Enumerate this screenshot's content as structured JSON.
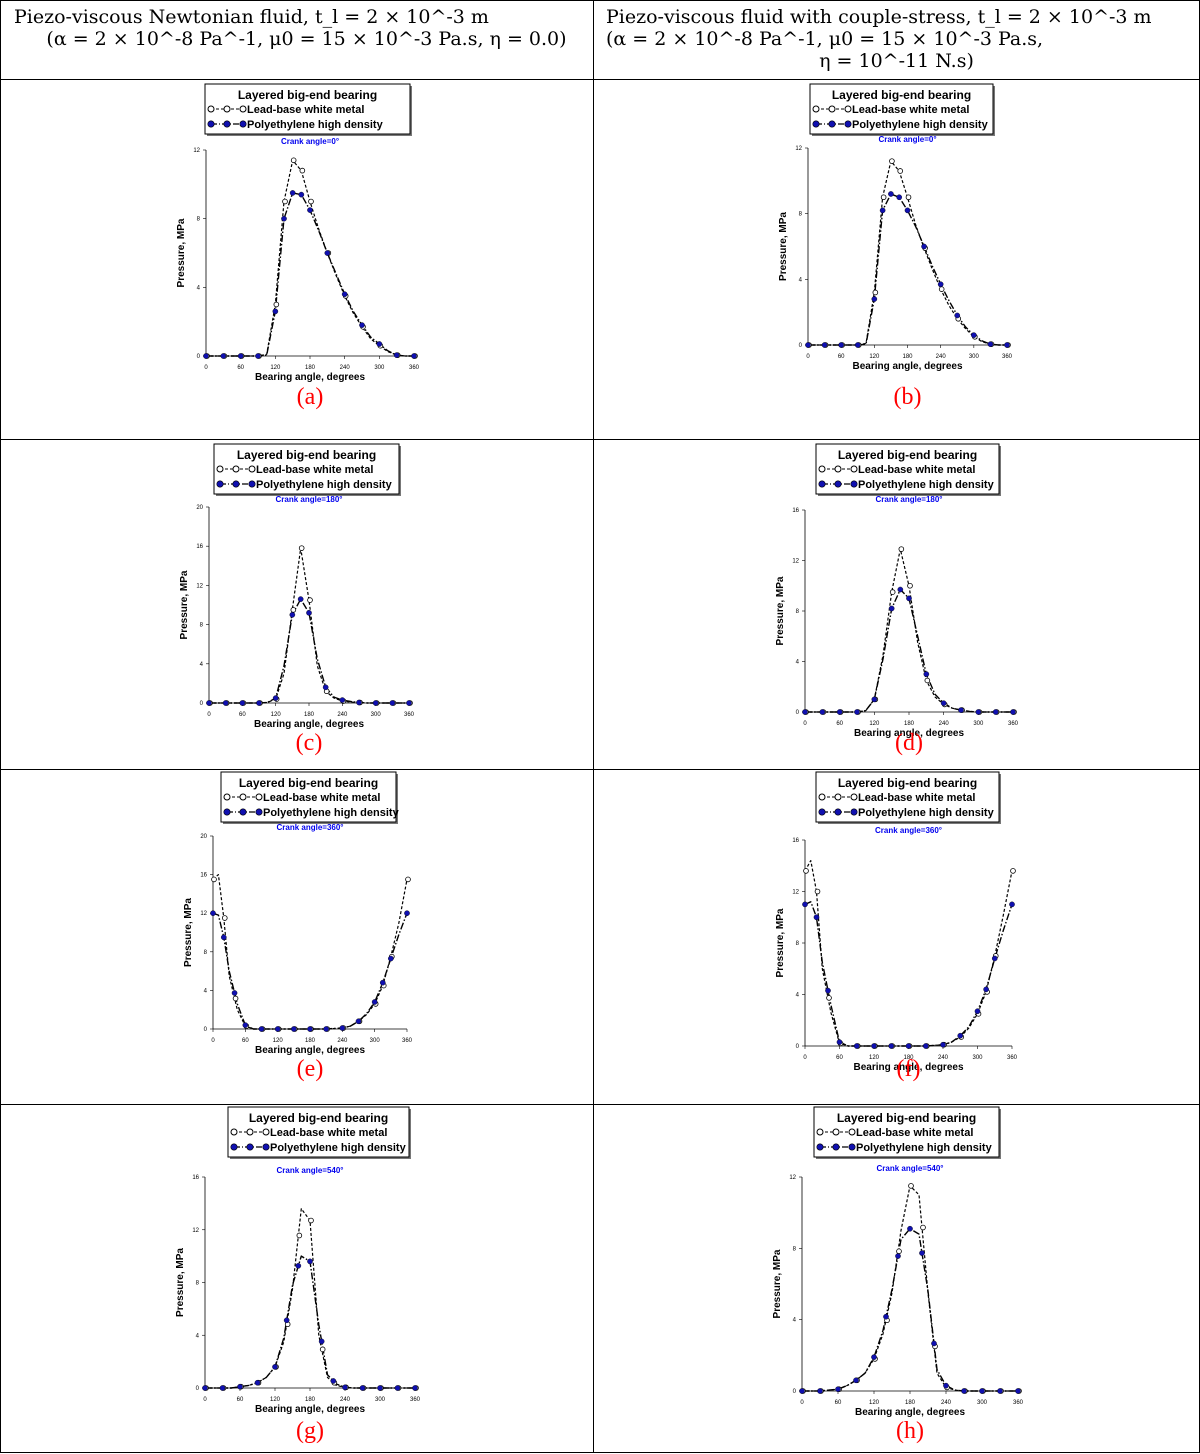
{
  "headers": {
    "left": {
      "line1": "Piezo-viscous Newtonian fluid,  t_l = 2 × 10^-3 m",
      "line2": "(α = 2 × 10^-8 Pa^-1, μ0 = 15 × 10^-3 Pa.s, η = 0.0)"
    },
    "right": {
      "line1": "Piezo-viscous fluid with couple-stress,  t_l = 2 × 10^-3 m",
      "line2": "(α = 2 × 10^-8 Pa^-1, μ0 = 15 × 10^-3 Pa.s,",
      "line3": "η = 10^-11 N.s)"
    }
  },
  "colors": {
    "lead": "#000000",
    "poly": "#1010b0",
    "crank_label": "#0000ee",
    "panel_letter": "#ff0000"
  },
  "legend": {
    "title": "Layered big-end bearing",
    "lead_label": "Lead-base white metal",
    "poly_label": "Polyethylene high density"
  },
  "chart_data": [
    {
      "panel": "(a)",
      "type": "line",
      "crank_label": "Crank angle=0°",
      "xlabel": "Bearing angle, degrees",
      "ylabel": "Pressure, MPa",
      "xlim": [
        0,
        360
      ],
      "ylim": [
        0,
        12
      ],
      "xticks": [
        0,
        60,
        120,
        180,
        240,
        300,
        360
      ],
      "yticks": [
        0,
        4,
        8,
        12
      ],
      "x": [
        0,
        15,
        30,
        45,
        60,
        75,
        90,
        105,
        120,
        135,
        150,
        165,
        180,
        195,
        210,
        225,
        240,
        255,
        270,
        285,
        300,
        315,
        330,
        345,
        360
      ],
      "series": [
        {
          "name": "Lead-base white metal",
          "values": [
            0,
            0,
            0,
            0,
            0,
            0,
            0,
            0.1,
            3.0,
            9.0,
            11.4,
            10.8,
            9.0,
            7.4,
            6.0,
            4.7,
            3.5,
            2.5,
            1.7,
            1.0,
            0.6,
            0.25,
            0.05,
            0,
            0
          ]
        },
        {
          "name": "Polyethylene high density",
          "values": [
            0,
            0,
            0,
            0,
            0,
            0,
            0,
            0.05,
            2.6,
            8.0,
            9.5,
            9.4,
            8.5,
            7.3,
            6.0,
            4.8,
            3.6,
            2.6,
            1.8,
            1.1,
            0.7,
            0.3,
            0.05,
            0,
            0
          ]
        }
      ],
      "markers_x": [
        0,
        30,
        60,
        90,
        120,
        135,
        150,
        165,
        180,
        210,
        240,
        270,
        300,
        330,
        360
      ]
    },
    {
      "panel": "(b)",
      "type": "line",
      "crank_label": "Crank angle=0°",
      "xlabel": "Bearing angle, degrees",
      "ylabel": "Pressure, MPa",
      "xlim": [
        0,
        360
      ],
      "ylim": [
        0,
        12
      ],
      "xticks": [
        0,
        60,
        120,
        180,
        240,
        300,
        360
      ],
      "yticks": [
        0,
        4,
        8,
        12
      ],
      "x": [
        0,
        15,
        30,
        45,
        60,
        75,
        90,
        105,
        120,
        135,
        150,
        165,
        180,
        195,
        210,
        225,
        240,
        255,
        270,
        285,
        300,
        315,
        330,
        345,
        360
      ],
      "series": [
        {
          "name": "Lead-base white metal",
          "values": [
            0,
            0,
            0,
            0,
            0,
            0,
            0,
            0.1,
            3.2,
            9.0,
            11.2,
            10.6,
            9.0,
            7.3,
            5.9,
            4.6,
            3.4,
            2.4,
            1.6,
            1.0,
            0.5,
            0.2,
            0.05,
            0,
            0
          ]
        },
        {
          "name": "Polyethylene high density",
          "values": [
            0,
            0,
            0,
            0,
            0,
            0,
            0,
            0.05,
            2.8,
            8.2,
            9.2,
            9.0,
            8.2,
            7.2,
            6.0,
            4.8,
            3.7,
            2.7,
            1.8,
            1.1,
            0.6,
            0.25,
            0.05,
            0,
            0
          ]
        }
      ],
      "markers_x": [
        0,
        30,
        60,
        90,
        120,
        135,
        150,
        165,
        180,
        210,
        240,
        270,
        300,
        330,
        360
      ]
    },
    {
      "panel": "(c)",
      "type": "line",
      "crank_label": "Crank angle=180°",
      "xlabel": "Bearing angle, degrees",
      "ylabel": "Pressure, MPa",
      "xlim": [
        0,
        360
      ],
      "ylim": [
        0,
        20
      ],
      "xticks": [
        0,
        60,
        120,
        180,
        240,
        300,
        360
      ],
      "yticks": [
        0,
        4,
        8,
        12,
        16,
        20
      ],
      "x": [
        0,
        15,
        30,
        45,
        60,
        75,
        90,
        105,
        120,
        135,
        150,
        165,
        180,
        195,
        210,
        225,
        240,
        255,
        270,
        285,
        300,
        315,
        330,
        345,
        360
      ],
      "series": [
        {
          "name": "Lead-base white metal",
          "values": [
            0,
            0,
            0,
            0,
            0,
            0,
            0,
            0.05,
            0.4,
            3.0,
            9.5,
            15.8,
            10.5,
            3.8,
            1.2,
            0.5,
            0.2,
            0.1,
            0.05,
            0,
            0,
            0,
            0,
            0,
            0
          ]
        },
        {
          "name": "Polyethylene high density",
          "values": [
            0,
            0,
            0,
            0,
            0,
            0,
            0,
            0.05,
            0.5,
            3.8,
            9.0,
            10.6,
            9.2,
            4.5,
            1.6,
            0.6,
            0.3,
            0.15,
            0.05,
            0,
            0,
            0,
            0,
            0,
            0
          ]
        }
      ],
      "markers_x": [
        0,
        30,
        60,
        90,
        120,
        150,
        165,
        180,
        210,
        240,
        270,
        300,
        330,
        360
      ]
    },
    {
      "panel": "(d)",
      "type": "line",
      "crank_label": "Crank angle=180°",
      "xlabel": "Bearing angle, degrees",
      "ylabel": "Pressure, MPa",
      "xlim": [
        0,
        360
      ],
      "ylim": [
        0,
        16
      ],
      "xticks": [
        0,
        60,
        120,
        180,
        240,
        300,
        360
      ],
      "yticks": [
        0,
        4,
        8,
        12,
        16
      ],
      "x": [
        0,
        15,
        30,
        45,
        60,
        75,
        90,
        105,
        120,
        135,
        150,
        165,
        180,
        195,
        210,
        225,
        240,
        255,
        270,
        285,
        300,
        315,
        330,
        345,
        360
      ],
      "series": [
        {
          "name": "Lead-base white metal",
          "values": [
            0,
            0,
            0,
            0,
            0,
            0,
            0,
            0.1,
            1.0,
            4.5,
            9.5,
            12.9,
            10.0,
            5.5,
            2.5,
            1.2,
            0.6,
            0.3,
            0.15,
            0.05,
            0,
            0,
            0,
            0,
            0
          ]
        },
        {
          "name": "Polyethylene high density",
          "values": [
            0,
            0,
            0,
            0,
            0,
            0,
            0,
            0.1,
            1.0,
            4.2,
            8.2,
            9.7,
            9.0,
            6.0,
            3.0,
            1.4,
            0.7,
            0.3,
            0.15,
            0.05,
            0,
            0,
            0,
            0,
            0
          ]
        }
      ],
      "markers_x": [
        0,
        30,
        60,
        90,
        120,
        150,
        165,
        180,
        210,
        240,
        270,
        300,
        330,
        360
      ]
    },
    {
      "panel": "(e)",
      "type": "line",
      "crank_label": "Crank angle=360°",
      "xlabel": "Bearing angle, degrees",
      "ylabel": "Pressure, MPa",
      "xlim": [
        0,
        360
      ],
      "ylim": [
        0,
        20
      ],
      "xticks": [
        0,
        60,
        120,
        180,
        240,
        300,
        360
      ],
      "yticks": [
        0,
        4,
        8,
        12,
        16,
        20
      ],
      "x": [
        0,
        10,
        20,
        30,
        45,
        60,
        75,
        90,
        120,
        150,
        180,
        210,
        240,
        255,
        270,
        285,
        300,
        315,
        330,
        345,
        360
      ],
      "series": [
        {
          "name": "Lead-base white metal",
          "values": [
            15.5,
            16.0,
            11.5,
            5.5,
            2.0,
            0.3,
            0,
            0,
            0,
            0,
            0,
            0,
            0.1,
            0.3,
            0.8,
            1.5,
            2.6,
            4.5,
            7.5,
            11.0,
            15.5
          ]
        },
        {
          "name": "Polyethylene high density",
          "values": [
            12.0,
            11.8,
            9.5,
            6.0,
            2.6,
            0.4,
            0,
            0,
            0,
            0,
            0,
            0,
            0.1,
            0.3,
            0.8,
            1.6,
            2.8,
            4.8,
            7.3,
            9.8,
            12.0
          ]
        }
      ],
      "markers_x": [
        0,
        20,
        40,
        60,
        90,
        120,
        150,
        180,
        210,
        240,
        270,
        300,
        315,
        330,
        360
      ]
    },
    {
      "panel": "(f)",
      "type": "line",
      "crank_label": "Crank angle=360°",
      "xlabel": "Bearing angle, degrees",
      "ylabel": "Pressure, MPa",
      "xlim": [
        0,
        360
      ],
      "ylim": [
        0,
        16
      ],
      "xticks": [
        0,
        60,
        120,
        180,
        240,
        300,
        360
      ],
      "yticks": [
        0,
        4,
        8,
        12,
        16
      ],
      "x": [
        0,
        10,
        20,
        30,
        45,
        60,
        75,
        90,
        120,
        150,
        180,
        210,
        240,
        255,
        270,
        285,
        300,
        315,
        330,
        345,
        360
      ],
      "series": [
        {
          "name": "Lead-base white metal",
          "values": [
            13.6,
            14.4,
            12.0,
            6.0,
            2.6,
            0.2,
            0,
            0,
            0,
            0,
            0,
            0,
            0.1,
            0.3,
            0.7,
            1.4,
            2.5,
            4.2,
            7.0,
            10.2,
            13.6
          ]
        },
        {
          "name": "Polyethylene high density",
          "values": [
            11.0,
            11.2,
            10.0,
            6.5,
            3.2,
            0.3,
            0,
            0,
            0,
            0,
            0,
            0,
            0.1,
            0.3,
            0.8,
            1.5,
            2.7,
            4.4,
            6.8,
            9.0,
            11.0
          ]
        }
      ],
      "markers_x": [
        0,
        20,
        40,
        60,
        90,
        120,
        150,
        180,
        210,
        240,
        270,
        300,
        315,
        330,
        360
      ]
    },
    {
      "panel": "(g)",
      "type": "line",
      "crank_label": "Crank angle=540°",
      "xlabel": "Bearing angle, degrees",
      "ylabel": "Pressure, MPa",
      "xlim": [
        0,
        360
      ],
      "ylim": [
        0,
        16
      ],
      "xticks": [
        0,
        60,
        120,
        180,
        240,
        300,
        360
      ],
      "yticks": [
        0,
        4,
        8,
        12,
        16
      ],
      "x": [
        0,
        15,
        30,
        45,
        60,
        75,
        90,
        105,
        120,
        135,
        150,
        165,
        180,
        195,
        210,
        225,
        240,
        255,
        270,
        285,
        300,
        315,
        330,
        345,
        360
      ],
      "series": [
        {
          "name": "Lead-base white metal",
          "values": [
            0,
            0,
            0,
            0,
            0.1,
            0.2,
            0.4,
            0.8,
            1.6,
            3.5,
            7.5,
            13.6,
            12.7,
            4.0,
            0.8,
            0.2,
            0.05,
            0,
            0,
            0,
            0,
            0,
            0,
            0,
            0
          ]
        },
        {
          "name": "Polyethylene high density",
          "values": [
            0,
            0,
            0,
            0,
            0.1,
            0.2,
            0.4,
            0.8,
            1.6,
            3.8,
            7.8,
            10.0,
            9.6,
            4.8,
            1.0,
            0.3,
            0.05,
            0,
            0,
            0,
            0,
            0,
            0,
            0,
            0
          ]
        }
      ],
      "markers_x": [
        0,
        30,
        60,
        90,
        120,
        140,
        160,
        180,
        200,
        220,
        240,
        270,
        300,
        330,
        360
      ]
    },
    {
      "panel": "(h)",
      "type": "line",
      "crank_label": "Crank angle=540°",
      "xlabel": "Bearing angle, degrees",
      "ylabel": "Pressure, MPa",
      "xlim": [
        0,
        360
      ],
      "ylim": [
        0,
        12
      ],
      "xticks": [
        0,
        60,
        120,
        180,
        240,
        300,
        360
      ],
      "yticks": [
        0,
        4,
        8,
        12
      ],
      "x": [
        0,
        15,
        30,
        45,
        60,
        75,
        90,
        105,
        120,
        135,
        150,
        165,
        180,
        195,
        210,
        225,
        240,
        255,
        270,
        285,
        300,
        315,
        330,
        345,
        360
      ],
      "series": [
        {
          "name": "Lead-base white metal",
          "values": [
            0,
            0,
            0,
            0.05,
            0.1,
            0.3,
            0.6,
            1.0,
            1.8,
            3.2,
            5.5,
            9.0,
            11.5,
            11.0,
            5.5,
            1.0,
            0.2,
            0.05,
            0,
            0,
            0,
            0,
            0,
            0,
            0
          ]
        },
        {
          "name": "Polyethylene high density",
          "values": [
            0,
            0,
            0,
            0.05,
            0.1,
            0.3,
            0.6,
            1.0,
            1.9,
            3.4,
            5.7,
            8.5,
            9.1,
            8.8,
            5.6,
            1.2,
            0.3,
            0.05,
            0,
            0,
            0,
            0,
            0,
            0,
            0
          ]
        }
      ],
      "markers_x": [
        0,
        30,
        60,
        90,
        120,
        140,
        160,
        180,
        200,
        220,
        240,
        270,
        300,
        330,
        360
      ]
    }
  ]
}
